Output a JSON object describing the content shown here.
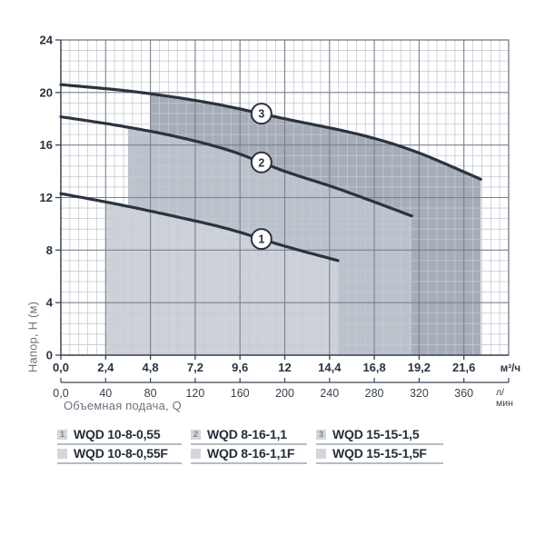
{
  "chart_data": {
    "type": "line",
    "title": "",
    "ylabel": "Напор, Н (м)",
    "xlabel": "Объемная подача, Q",
    "grid": "on",
    "y_axis": {
      "min": 0,
      "max": 24,
      "ticks": [
        "0",
        "4",
        "8",
        "12",
        "16",
        "20",
        "24"
      ],
      "tick_step": 4
    },
    "x_axis_primary": {
      "unit": "м³/ч",
      "min": 0,
      "max": 24,
      "tick_step": 2.4,
      "ticks": [
        "0,0",
        "2,4",
        "4,8",
        "7,2",
        "9,6",
        "12",
        "14,4",
        "16,8",
        "19,2",
        "21,6"
      ]
    },
    "x_axis_secondary": {
      "unit": "л/мин",
      "ticks": [
        "0,0",
        "40",
        "80",
        "120",
        "160",
        "200",
        "240",
        "280",
        "320",
        "360"
      ]
    },
    "series": [
      {
        "id": "1",
        "name": "WQD 10-8-0,55",
        "points": [
          [
            0,
            12.3
          ],
          [
            3,
            11.5
          ],
          [
            6,
            10.6
          ],
          [
            9,
            9.6
          ],
          [
            12,
            8.3
          ],
          [
            14.85,
            7.2
          ]
        ],
        "band_start_q": 2.4,
        "marker_q": 10.75,
        "fill": "#cdd1d8"
      },
      {
        "id": "2",
        "name": "WQD 8-16-1,1",
        "points": [
          [
            0,
            18.15
          ],
          [
            3,
            17.5
          ],
          [
            6,
            16.7
          ],
          [
            9,
            15.6
          ],
          [
            12,
            14.0
          ],
          [
            15,
            12.6
          ],
          [
            18.8,
            10.6
          ]
        ],
        "band_start_q": 3.6,
        "marker_q": 10.75,
        "fill": "#bcc2cb"
      },
      {
        "id": "3",
        "name": "WQD 15-15-1,5",
        "points": [
          [
            0,
            20.6
          ],
          [
            4,
            20.05
          ],
          [
            8,
            19.2
          ],
          [
            12,
            18.0
          ],
          [
            16,
            16.8
          ],
          [
            19,
            15.5
          ],
          [
            22.5,
            13.4
          ]
        ],
        "band_start_q": 4.8,
        "marker_q": 10.75,
        "fill": "#a6adb9"
      }
    ]
  },
  "colors": {
    "curve": "#2b3340",
    "grid_major": "#79818f",
    "grid_minor": "#c6cad2",
    "frame": "#67707e",
    "axis": "#3d4552",
    "text_dark": "#2a3340",
    "text_secondary": "#3a424e",
    "text_gray": "#6b737e"
  },
  "legend": {
    "columns": [
      {
        "num": "1",
        "primary": "WQD 10-8-0,55",
        "variant": "WQD 10-8-0,55F"
      },
      {
        "num": "2",
        "primary": "WQD 8-16-1,1",
        "variant": "WQD 8-16-1,1F"
      },
      {
        "num": "3",
        "primary": "WQD 15-15-1,5",
        "variant": "WQD 15-15-1,5F"
      }
    ]
  }
}
